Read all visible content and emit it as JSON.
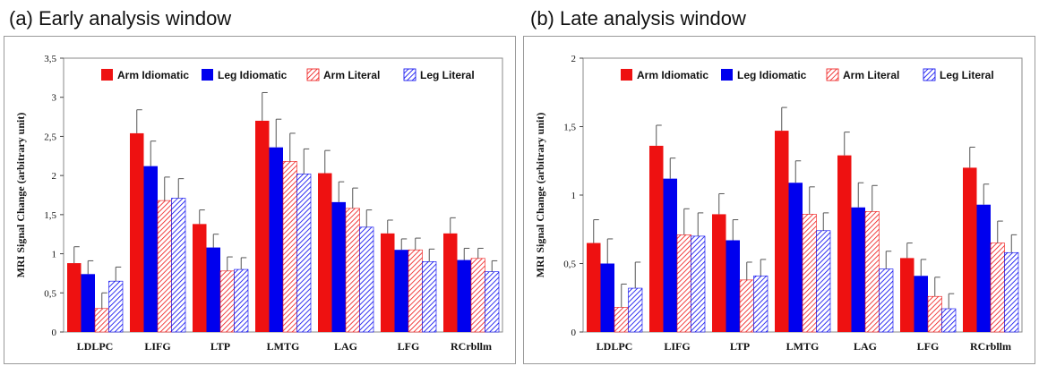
{
  "panels": [
    {
      "title": "(a) Early analysis window",
      "chart_data": {
        "type": "bar",
        "title": "(a) Early analysis window",
        "ylabel": "MRI Signal Change (arbitrary unit)",
        "xlabel": "",
        "ylim": [
          0,
          3.5
        ],
        "yticks": [
          "0",
          "0,5",
          "1",
          "1,5",
          "2",
          "2,5",
          "3",
          "3,5"
        ],
        "ytick_values": [
          0,
          0.5,
          1,
          1.5,
          2,
          2.5,
          3,
          3.5
        ],
        "categories": [
          "LDLPC",
          "LIFG",
          "LTP",
          "LMTG",
          "LAG",
          "LFG",
          "RCrbllm"
        ],
        "legend_position": "top",
        "series": [
          {
            "name": "Arm Idiomatic",
            "color": "#ee1111",
            "pattern": "solid",
            "values": [
              0.88,
              2.54,
              1.38,
              2.7,
              2.03,
              1.26,
              1.26
            ],
            "errors": [
              0.21,
              0.3,
              0.18,
              0.36,
              0.29,
              0.17,
              0.2
            ]
          },
          {
            "name": "Leg Idiomatic",
            "color": "#0000ee",
            "pattern": "solid",
            "values": [
              0.74,
              2.12,
              1.08,
              2.36,
              1.66,
              1.05,
              0.92
            ],
            "errors": [
              0.17,
              0.32,
              0.17,
              0.36,
              0.26,
              0.14,
              0.15
            ]
          },
          {
            "name": "Arm Literal",
            "color": "#ee1111",
            "pattern": "hatch",
            "values": [
              0.3,
              1.68,
              0.78,
              2.18,
              1.58,
              1.05,
              0.94
            ],
            "errors": [
              0.2,
              0.3,
              0.18,
              0.36,
              0.26,
              0.15,
              0.13
            ]
          },
          {
            "name": "Leg Literal",
            "color": "#0000ee",
            "pattern": "hatch",
            "values": [
              0.65,
              1.71,
              0.8,
              2.02,
              1.34,
              0.9,
              0.77
            ],
            "errors": [
              0.18,
              0.25,
              0.15,
              0.32,
              0.22,
              0.16,
              0.14
            ]
          }
        ]
      }
    },
    {
      "title": "(b) Late analysis window",
      "chart_data": {
        "type": "bar",
        "title": "(b) Late analysis window",
        "ylabel": "MRI Signal Change (arbitrary unit)",
        "xlabel": "",
        "ylim": [
          0,
          2
        ],
        "yticks": [
          "0",
          "0,5",
          "1",
          "1,5",
          "2"
        ],
        "ytick_values": [
          0,
          0.5,
          1,
          1.5,
          2
        ],
        "categories": [
          "LDLPC",
          "LIFG",
          "LTP",
          "LMTG",
          "LAG",
          "LFG",
          "RCrbllm"
        ],
        "legend_position": "top",
        "series": [
          {
            "name": "Arm Idiomatic",
            "color": "#ee1111",
            "pattern": "solid",
            "values": [
              0.65,
              1.36,
              0.86,
              1.47,
              1.29,
              0.54,
              1.2
            ],
            "errors": [
              0.17,
              0.15,
              0.15,
              0.17,
              0.17,
              0.11,
              0.15
            ]
          },
          {
            "name": "Leg Idiomatic",
            "color": "#0000ee",
            "pattern": "solid",
            "values": [
              0.5,
              1.12,
              0.67,
              1.09,
              0.91,
              0.41,
              0.93
            ],
            "errors": [
              0.18,
              0.15,
              0.15,
              0.16,
              0.18,
              0.12,
              0.15
            ]
          },
          {
            "name": "Arm Literal",
            "color": "#ee1111",
            "pattern": "hatch",
            "values": [
              0.18,
              0.71,
              0.38,
              0.86,
              0.88,
              0.26,
              0.65
            ],
            "errors": [
              0.17,
              0.19,
              0.13,
              0.2,
              0.19,
              0.14,
              0.16
            ]
          },
          {
            "name": "Leg Literal",
            "color": "#0000ee",
            "pattern": "hatch",
            "values": [
              0.32,
              0.7,
              0.41,
              0.74,
              0.46,
              0.17,
              0.58
            ],
            "errors": [
              0.19,
              0.17,
              0.12,
              0.13,
              0.13,
              0.11,
              0.13
            ]
          }
        ]
      }
    }
  ]
}
